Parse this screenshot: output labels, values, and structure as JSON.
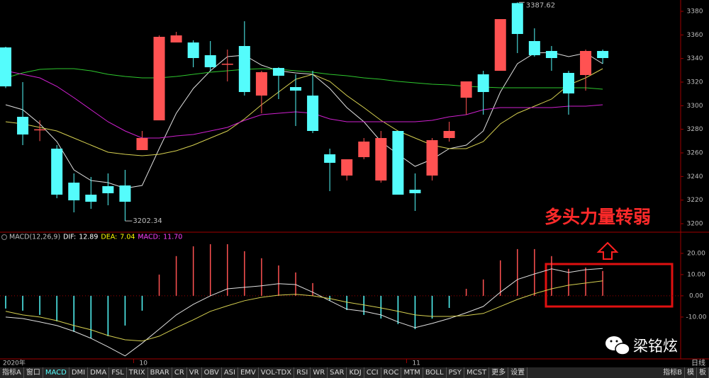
{
  "chart_data": [
    {
      "type": "candlestick",
      "categories": [
        "2020年",
        null,
        null,
        null,
        null,
        null,
        null,
        null,
        "10",
        null,
        null,
        null,
        null,
        null,
        null,
        null,
        null,
        null,
        null,
        null,
        null,
        null,
        null,
        null,
        "11",
        null,
        null,
        null,
        null,
        null,
        null,
        null,
        null,
        null,
        null,
        null
      ],
      "open": [
        3349.4,
        3290.6,
        3280,
        3263.6,
        3234.8,
        3224.6,
        3231.8,
        3232.4,
        3262.4,
        3287.6,
        3353.6,
        3353.6,
        3342.8,
        3335,
        3350.6,
        3308.6,
        3332,
        3315.8,
        3308.6,
        3258.8,
        3240.8,
        3256.4,
        3236.6,
        3278.6,
        3228.8,
        3240.8,
        3272.6,
        3306.8,
        3326.6,
        3329.6,
        3387,
        3354.8,
        3346.4,
        3327.8,
        3326,
        3346.4
      ],
      "high": [
        3350,
        3320,
        3287.6,
        3266.6,
        3242.6,
        3239.6,
        3242.6,
        3245.6,
        3278.6,
        3359.6,
        3362.6,
        3355.4,
        3354.8,
        3347.6,
        3371.6,
        3329.6,
        3332.6,
        3326.6,
        3329.6,
        3263.6,
        3254.6,
        3272.6,
        3278.6,
        3278.6,
        3242.6,
        3272.6,
        3286.4,
        3320.6,
        3329.6,
        3373.4,
        3387.62,
        3365.6,
        3350.6,
        3329.6,
        3347.6,
        3347.6
      ],
      "low": [
        3315,
        3266.6,
        3270,
        3221.6,
        3209.6,
        3212.6,
        3215.6,
        3202.34,
        3262.4,
        3287.6,
        3353.6,
        3332.6,
        3329.6,
        3320.6,
        3308.6,
        3293.6,
        3305.6,
        3282.8,
        3276.8,
        3227.6,
        3236.6,
        3254.6,
        3234.8,
        3224.6,
        3210.8,
        3236.6,
        3269.6,
        3292.4,
        3292.4,
        3329.6,
        3344.6,
        3341.6,
        3329.6,
        3292.4,
        3312.8,
        3335.6
      ],
      "close": [
        3316.4,
        3275.6,
        3280,
        3224.6,
        3219.8,
        3218.6,
        3225.8,
        3218.6,
        3272.6,
        3358.4,
        3359.6,
        3340.4,
        3332.6,
        3335.6,
        3311.6,
        3328.4,
        3325.4,
        3312.8,
        3278.6,
        3251.6,
        3254.6,
        3269.6,
        3272.6,
        3224.6,
        3225.8,
        3270.8,
        3278.6,
        3320.6,
        3311.6,
        3373.4,
        3360.8,
        3342.8,
        3340.4,
        3310.4,
        3346.4,
        3340.4
      ],
      "up_color": "#ff5252",
      "down_color": "#54fcfc",
      "ma_lines": [
        {
          "color": "#e0e0e0",
          "values": [
            3300.8,
            3296.6,
            3284.6,
            3269.6,
            3245.6,
            3236.6,
            3234.8,
            3230,
            3232.4,
            3263.6,
            3293.6,
            3314.6,
            3329.6,
            3341.6,
            3342.8,
            3334.4,
            3329.6,
            3327.8,
            3326.6,
            3314.6,
            3298.4,
            3286.4,
            3269.6,
            3258.8,
            3248.6,
            3254.6,
            3263.6,
            3266.6,
            3278.6,
            3311.6,
            3335.6,
            3344.6,
            3345.2,
            3341.6,
            3344.6,
            3335.6
          ]
        },
        {
          "color": "#d6d050",
          "values": [
            3286.4,
            3284.6,
            3281.6,
            3278.6,
            3272.6,
            3266.6,
            3260.6,
            3258.8,
            3257.6,
            3258.8,
            3261.8,
            3266.6,
            3272.6,
            3278.6,
            3288.8,
            3300.8,
            3311.6,
            3322.4,
            3326.6,
            3320.6,
            3308.6,
            3298.4,
            3287.6,
            3278.6,
            3272.6,
            3266.6,
            3263.6,
            3263.6,
            3269.6,
            3284.6,
            3293.6,
            3299.6,
            3305.6,
            3317.6,
            3323.6,
            3331.4
          ]
        },
        {
          "color": "#2ec82e",
          "values": [
            3323.6,
            3327.8,
            3330.8,
            3331.4,
            3331.4,
            3329.6,
            3326.6,
            3324.8,
            3323.6,
            3323.6,
            3324.8,
            3326.6,
            3328.4,
            3329.6,
            3330.8,
            3331.4,
            3330.8,
            3329.6,
            3328.4,
            3326.6,
            3325.4,
            3323.6,
            3322.4,
            3320.6,
            3319.4,
            3318.2,
            3317.6,
            3316.4,
            3315.8,
            3315.2,
            3315.2,
            3315.2,
            3315.2,
            3315.2,
            3315.2,
            3314
          ]
        },
        {
          "color": "#d020d0",
          "values": [
            3329.6,
            3326.6,
            3323.6,
            3316.4,
            3306.8,
            3296.6,
            3286.4,
            3278.6,
            3272.6,
            3272.6,
            3274.4,
            3275.6,
            3278.6,
            3281.6,
            3287.6,
            3292.4,
            3293.6,
            3294.8,
            3293.6,
            3288.8,
            3286.4,
            3286.4,
            3286.4,
            3286.4,
            3286.4,
            3287.6,
            3290.6,
            3292.4,
            3296.6,
            3298.4,
            3298.4,
            3298.4,
            3298.4,
            3299.6,
            3299.6,
            3300.8
          ]
        }
      ],
      "high_mark": 3387.62,
      "low_mark": 3202.34,
      "annotation": "多头力量转弱",
      "ylim": [
        3192.8,
        3389.6
      ],
      "yticks": [
        3380,
        3360,
        3340,
        3320,
        3300,
        3280,
        3260,
        3240,
        3220,
        3200
      ]
    },
    {
      "type": "macd",
      "title": "MACD(12,26,9)",
      "legend": [
        {
          "label": "DIF:",
          "value": 12.89,
          "color": "#ffffff"
        },
        {
          "label": "DEA:",
          "value": 7.04,
          "color": "#ffff00"
        },
        {
          "label": "MACD:",
          "value": 11.7,
          "value_label": "11.70",
          "color": "#ff40ff"
        }
      ],
      "histogram": [
        -6,
        -7,
        -9,
        -12,
        -17,
        -20,
        -19,
        -14,
        -7,
        10,
        18.7,
        23.3,
        24.3,
        24.3,
        21,
        17.7,
        14.3,
        11,
        6,
        -2.3,
        -6.7,
        -9,
        -10.7,
        -13.3,
        -15.7,
        -10.7,
        -5.7,
        3.3,
        7.7,
        16.7,
        22,
        22,
        18.7,
        12.7,
        13.3,
        11.7
      ],
      "dif": [
        -10,
        -10.7,
        -12.3,
        -14,
        -16.7,
        -20,
        -24,
        -28.3,
        -22.3,
        -15.7,
        -9,
        -4,
        0,
        3.3,
        4,
        4.7,
        5.7,
        5.3,
        1.7,
        -2.3,
        -6.3,
        -7.3,
        -9,
        -12.3,
        -15,
        -13,
        -10.7,
        -8,
        -5,
        1.7,
        7.7,
        10.3,
        12.7,
        11,
        12.3,
        12.89
      ],
      "dea": [
        -7.3,
        -9,
        -10,
        -11.7,
        -14,
        -16,
        -18.7,
        -20.7,
        -21.3,
        -19,
        -15,
        -11.3,
        -7.3,
        -4.7,
        -2.3,
        -0.7,
        0.3,
        0.7,
        0,
        -1.3,
        -3,
        -4.3,
        -5.7,
        -7.3,
        -9,
        -9.7,
        -9.7,
        -9.3,
        -8.3,
        -5,
        -1.7,
        1,
        3.3,
        5,
        6,
        7.04
      ],
      "up_color": "#ff5252",
      "down_color": "#54fcfc",
      "dif_color": "#e0e0e0",
      "dea_color": "#d6d050",
      "ylim": [
        -29.7,
        29.3
      ],
      "yticks": [
        {
          "value": 20,
          "label": "20.00"
        },
        {
          "value": 10,
          "label": "10.00"
        },
        {
          "value": 0,
          "label": "0.00"
        },
        {
          "value": -10,
          "label": "-10.00"
        }
      ]
    }
  ],
  "period": "日线",
  "watermark": "梁铭炫",
  "tabs": [
    "指标A",
    "窗口",
    "MACD",
    "DMI",
    "DMA",
    "FSL",
    "TRIX",
    "BRAR",
    "CR",
    "VR",
    "OBV",
    "ASI",
    "EMV",
    "VOL-TDX",
    "RSI",
    "WR",
    "SAR",
    "KDJ",
    "CCI",
    "ROC",
    "MTM",
    "BOLL",
    "PSY",
    "MCST",
    "更多",
    "设置"
  ],
  "tabs_right": [
    "指标B",
    "模",
    "板"
  ]
}
